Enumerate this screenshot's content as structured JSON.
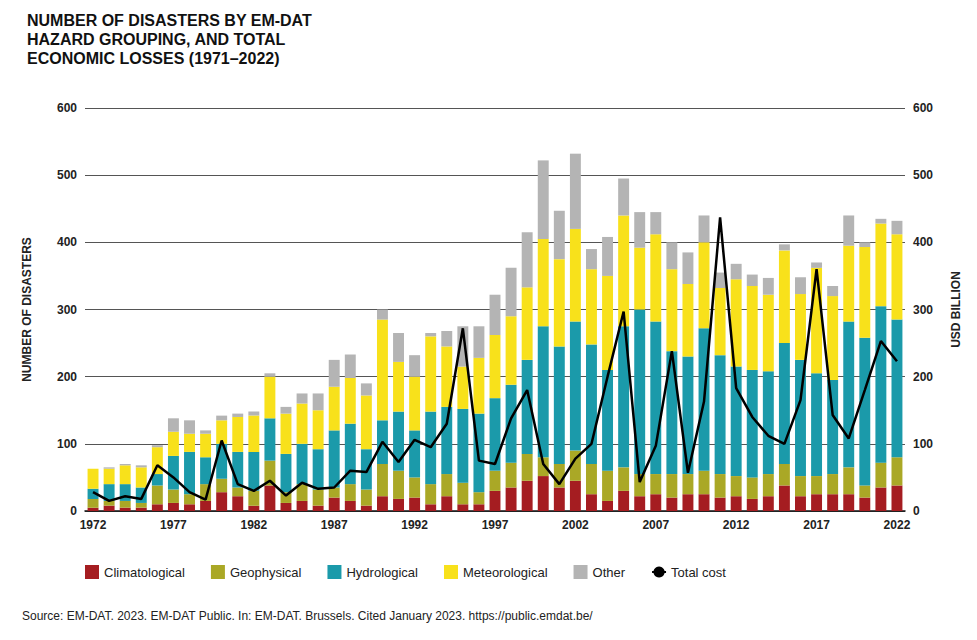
{
  "chart_data": {
    "type": "bar",
    "title": "NUMBER OF DISASTERS BY EM-DAT HAZARD GROUPING, AND TOTAL ECONOMIC LOSSES (1971–2022)",
    "ylabel": "NUMBER OF DISASTERS",
    "y2label": "USD BILLION",
    "annotations": [
      "Source: EM-DAT. 2023. EM-DAT Public. In: EM-DAT. Brussels. Cited January 2023. https://public.emdat.be/"
    ],
    "categories": [
      "1972",
      null,
      null,
      null,
      null,
      "1977",
      null,
      null,
      null,
      null,
      "1982",
      null,
      null,
      null,
      null,
      "1987",
      null,
      null,
      null,
      null,
      "1992",
      null,
      null,
      null,
      null,
      "1997",
      null,
      null,
      null,
      null,
      "2002",
      null,
      null,
      null,
      null,
      "2007",
      null,
      null,
      null,
      null,
      "2012",
      null,
      null,
      null,
      null,
      "2017",
      null,
      null,
      null,
      null,
      "2022"
    ],
    "series": [
      {
        "name": "Climatological",
        "color": "#a51d21",
        "values": [
          5,
          8,
          5,
          5,
          10,
          12,
          10,
          15,
          28,
          22,
          8,
          38,
          12,
          15,
          8,
          20,
          15,
          8,
          22,
          18,
          20,
          10,
          22,
          10,
          10,
          30,
          35,
          45,
          52,
          35,
          45,
          25,
          15,
          30,
          22,
          25,
          20,
          25,
          25,
          20,
          22,
          18,
          22,
          38,
          22,
          25,
          25,
          25,
          20,
          35,
          38
        ]
      },
      {
        "name": "Geophysical",
        "color": "#aaa826",
        "values": [
          13,
          7,
          10,
          7,
          28,
          20,
          15,
          25,
          20,
          13,
          22,
          37,
          16,
          25,
          24,
          15,
          25,
          24,
          48,
          42,
          30,
          30,
          33,
          32,
          18,
          30,
          37,
          40,
          28,
          35,
          45,
          45,
          45,
          35,
          33,
          30,
          35,
          30,
          35,
          35,
          30,
          32,
          33,
          32,
          30,
          27,
          30,
          40,
          18,
          37,
          42
        ]
      },
      {
        "name": "Hydrological",
        "color": "#1b9aaa",
        "values": [
          15,
          25,
          25,
          23,
          17,
          50,
          63,
          40,
          52,
          53,
          58,
          63,
          57,
          60,
          60,
          85,
          90,
          60,
          65,
          88,
          70,
          108,
          100,
          110,
          117,
          108,
          116,
          140,
          195,
          175,
          192,
          178,
          150,
          210,
          245,
          227,
          183,
          175,
          212,
          177,
          163,
          160,
          153,
          180,
          173,
          153,
          140,
          217,
          220,
          233,
          205
        ]
      },
      {
        "name": "Meteorological",
        "color": "#f8e11b",
        "values": [
          30,
          23,
          28,
          30,
          40,
          36,
          27,
          35,
          35,
          52,
          54,
          62,
          60,
          60,
          58,
          65,
          68,
          80,
          150,
          74,
          80,
          112,
          90,
          63,
          83,
          94,
          102,
          108,
          130,
          130,
          138,
          112,
          140,
          165,
          92,
          130,
          122,
          108,
          128,
          100,
          130,
          125,
          114,
          138,
          98,
          157,
          125,
          113,
          135,
          123,
          127
        ]
      },
      {
        "name": "Other",
        "color": "#b4b4b4",
        "values": [
          0,
          2,
          2,
          3,
          3,
          20,
          20,
          5,
          7,
          5,
          6,
          5,
          10,
          15,
          25,
          40,
          35,
          18,
          15,
          43,
          32,
          5,
          23,
          60,
          47,
          60,
          72,
          82,
          117,
          72,
          112,
          30,
          58,
          55,
          53,
          33,
          40,
          47,
          40,
          23,
          23,
          17,
          25,
          9,
          25,
          8,
          15,
          45,
          7,
          7,
          20
        ]
      },
      {
        "name": "Total cost",
        "type": "line",
        "axis": "y2",
        "color": "#000000",
        "values": [
          28,
          15,
          22,
          18,
          68,
          50,
          28,
          17,
          105,
          40,
          30,
          45,
          23,
          42,
          33,
          35,
          60,
          58,
          103,
          73,
          106,
          95,
          130,
          272,
          75,
          70,
          138,
          180,
          70,
          40,
          78,
          100,
          200,
          297,
          43,
          97,
          238,
          57,
          163,
          437,
          183,
          140,
          112,
          100,
          165,
          360,
          143,
          108,
          180,
          253,
          223
        ]
      }
    ],
    "ylim": [
      0,
      600
    ],
    "yticks": [
      0,
      100,
      200,
      300,
      400,
      500,
      600
    ],
    "y2lim": [
      0,
      600
    ],
    "y2ticks": [
      0,
      100,
      200,
      300,
      400,
      500,
      600
    ],
    "stacked": true,
    "grid": true,
    "legend": "bottom"
  }
}
